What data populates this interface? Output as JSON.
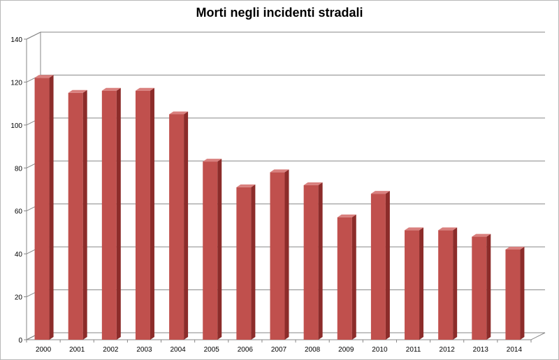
{
  "chart_data": {
    "type": "bar",
    "title": "Morti negli incidenti stradali",
    "categories": [
      "2000",
      "2001",
      "2002",
      "2003",
      "2004",
      "2005",
      "2006",
      "2007",
      "2008",
      "2009",
      "2010",
      "2011",
      "2012",
      "2013",
      "2014"
    ],
    "series": [
      {
        "values": [
          122,
          115,
          116,
          116,
          105,
          83,
          71,
          78,
          72,
          57,
          68,
          51,
          51,
          48,
          42
        ]
      }
    ],
    "yticks": [
      0,
      20,
      40,
      60,
      80,
      100,
      120,
      140
    ],
    "ylim": [
      0,
      140
    ],
    "xlabel": "",
    "ylabel": "",
    "grid": true,
    "legend": "none",
    "colors": {
      "bar_front": "#c0504d",
      "bar_side": "#8c2c2a",
      "bar_top": "#d9807e",
      "grid": "#878787",
      "wall": "#ffffff"
    }
  }
}
